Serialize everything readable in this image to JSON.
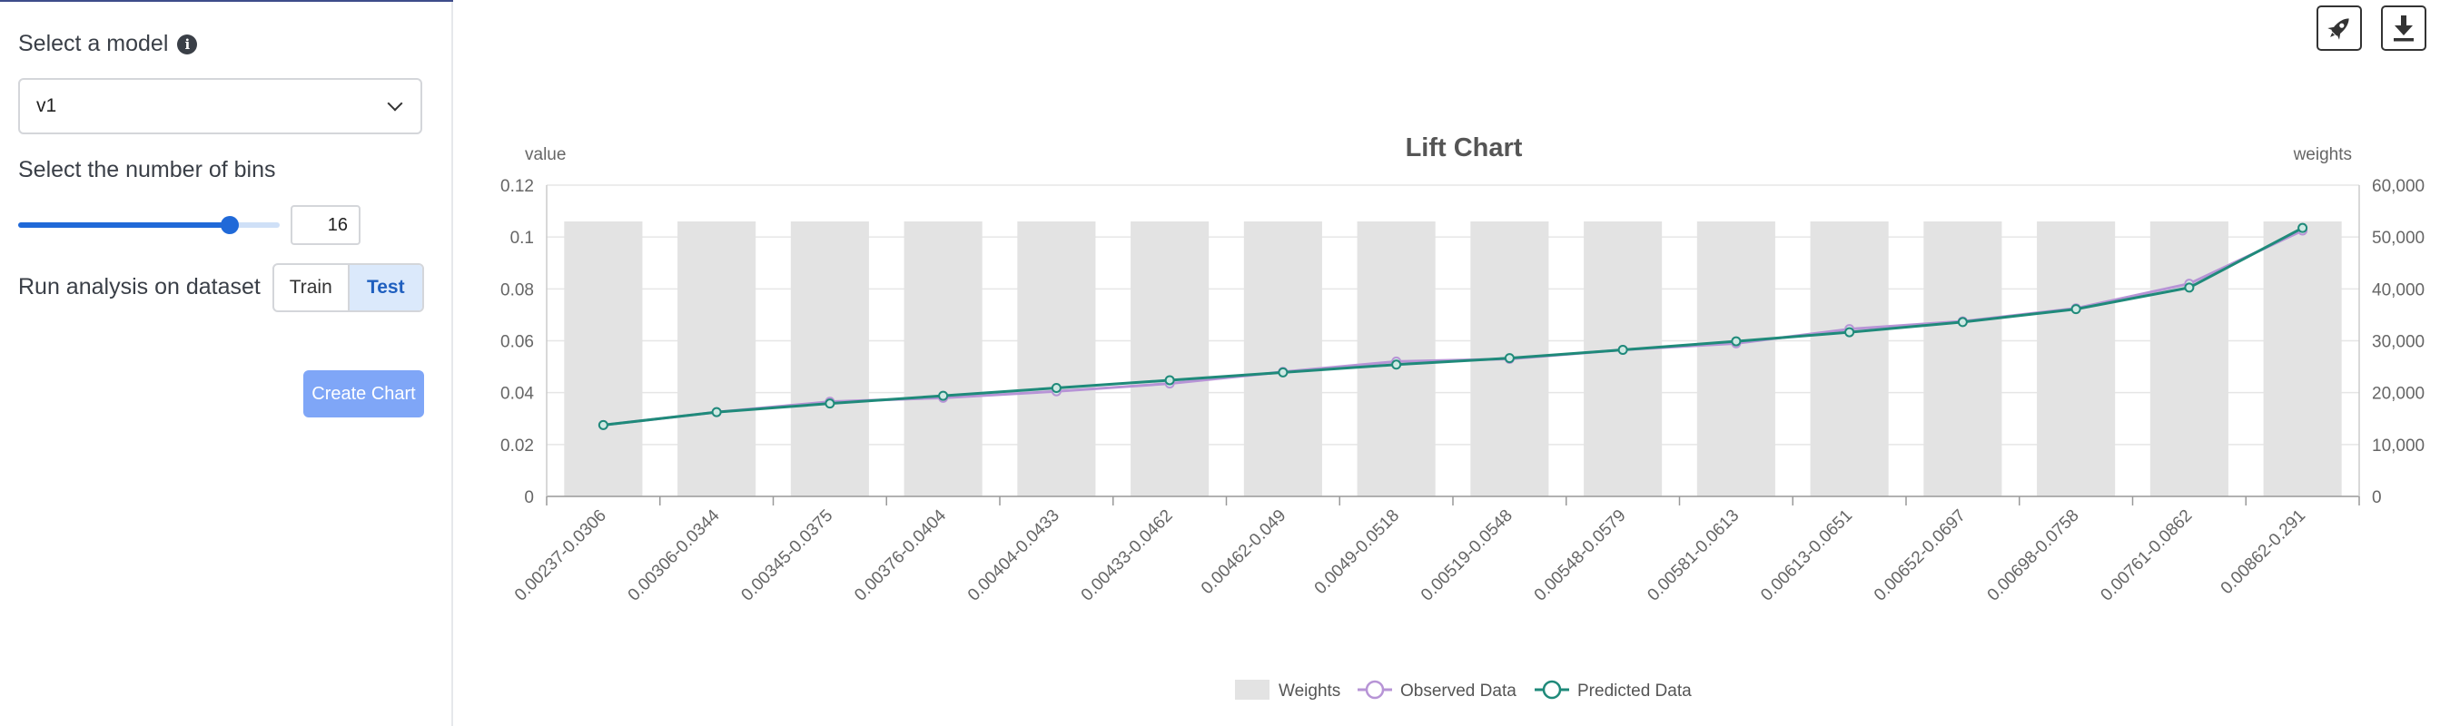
{
  "sidebar": {
    "model_label": "Select a model",
    "model_value": "v1",
    "bins_label": "Select the number of bins",
    "bins_value": "16",
    "bins_fraction": 0.81,
    "dataset_label": "Run analysis on dataset",
    "dataset_options": [
      "Train",
      "Test"
    ],
    "dataset_selected": "Test",
    "create_label": "Create Chart"
  },
  "toolbar": {
    "icons": [
      "rocket-icon",
      "download-icon"
    ]
  },
  "colors": {
    "weights": "#e3e3e3",
    "observed": "#b794d6",
    "predicted": "#1f8a7a",
    "accent": "#2069d8"
  },
  "chart_data": {
    "type": "bar+line",
    "title": "Lift Chart",
    "ylabel": "value",
    "y2label": "weights",
    "ylim": [
      0,
      0.12
    ],
    "y2lim": [
      0,
      60000
    ],
    "yticks": [
      "0",
      "0.02",
      "0.04",
      "0.06",
      "0.08",
      "0.1",
      "0.12"
    ],
    "y2ticks": [
      "0",
      "10,000",
      "20,000",
      "30,000",
      "40,000",
      "50,000",
      "60,000"
    ],
    "grid": true,
    "legend_position": "bottom",
    "categories": [
      "0.00237-0.0306",
      "0.00306-0.0344",
      "0.00345-0.0375",
      "0.00376-0.0404",
      "0.00404-0.0433",
      "0.00433-0.0462",
      "0.00462-0.049",
      "0.0049-0.0518",
      "0.00519-0.0548",
      "0.00548-0.0579",
      "0.00581-0.0613",
      "0.00613-0.0651",
      "0.00652-0.0697",
      "0.00698-0.0758",
      "0.00761-0.0862",
      "0.00862-0.291"
    ],
    "series": [
      {
        "name": "Weights",
        "axis": "right",
        "kind": "bar",
        "values": [
          53000,
          53000,
          53000,
          53000,
          53000,
          53000,
          53000,
          53000,
          53000,
          53000,
          53000,
          53000,
          53000,
          53000,
          53000,
          53000
        ]
      },
      {
        "name": "Observed Data",
        "axis": "left",
        "kind": "line",
        "values": [
          0.0275,
          0.0325,
          0.0365,
          0.038,
          0.0405,
          0.0435,
          0.048,
          0.052,
          0.053,
          0.0565,
          0.059,
          0.0645,
          0.0675,
          0.0725,
          0.082,
          0.1025
        ]
      },
      {
        "name": "Predicted Data",
        "axis": "left",
        "kind": "line",
        "values": [
          0.0275,
          0.0325,
          0.0358,
          0.0388,
          0.0418,
          0.0448,
          0.0478,
          0.0508,
          0.0533,
          0.0565,
          0.0598,
          0.0633,
          0.0672,
          0.0722,
          0.0805,
          0.1035
        ]
      }
    ]
  }
}
